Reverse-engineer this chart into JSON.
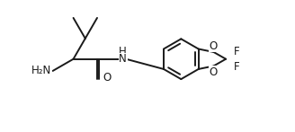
{
  "background_color": "#ffffff",
  "line_color": "#1a1a1a",
  "line_width": 1.4,
  "font_size": 8.5,
  "fig_width": 3.28,
  "fig_height": 1.47,
  "dpi": 100,
  "xlim": [
    0,
    10.5
  ],
  "ylim": [
    0,
    4.5
  ]
}
